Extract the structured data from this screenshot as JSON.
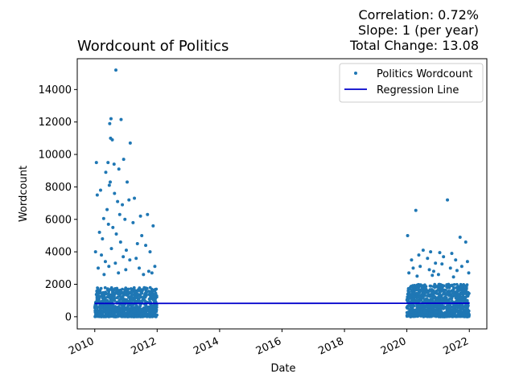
{
  "chart_data": {
    "type": "scatter",
    "title": "Wordcount of Politics",
    "stats": [
      "Correlation: 0.72%",
      "Slope: 1 (per year)",
      "Total Change: 13.08"
    ],
    "xlabel": "Date",
    "ylabel": "Wordcount",
    "x_ticks": [
      "2010",
      "2012",
      "2014",
      "2016",
      "2018",
      "2020",
      "2022"
    ],
    "y_ticks": [
      "0",
      "2000",
      "4000",
      "6000",
      "8000",
      "10000",
      "12000",
      "14000"
    ],
    "xlim": [
      "2009-06-10",
      "2022-07-25"
    ],
    "ylim": [
      -750,
      15900
    ],
    "grid": false,
    "legend_position": "upper right",
    "series": [
      {
        "name": "Politics Wordcount",
        "kind": "points",
        "color": "#1f77b4",
        "dense_bands": [
          {
            "x_range": [
              "2010-01-01",
              "2011-12-31"
            ],
            "y_range": [
              0,
              1800
            ]
          },
          {
            "x_range": [
              "2020-01-01",
              "2021-12-31"
            ],
            "y_range": [
              0,
              2000
            ]
          }
        ],
        "points": [
          [
            "2010-09-05",
            15200
          ],
          [
            "2010-07-10",
            12200
          ],
          [
            "2010-06-25",
            11900
          ],
          [
            "2010-11-05",
            12150
          ],
          [
            "2010-07-05",
            11000
          ],
          [
            "2010-07-25",
            10900
          ],
          [
            "2011-02-20",
            10700
          ],
          [
            "2010-01-20",
            9500
          ],
          [
            "2010-06-05",
            9500
          ],
          [
            "2010-08-15",
            9400
          ],
          [
            "2010-10-10",
            9100
          ],
          [
            "2010-12-05",
            9700
          ],
          [
            "2010-05-10",
            8900
          ],
          [
            "2010-07-01",
            8300
          ],
          [
            "2010-06-20",
            8100
          ],
          [
            "2011-01-15",
            8300
          ],
          [
            "2010-03-10",
            7800
          ],
          [
            "2010-08-20",
            7600
          ],
          [
            "2011-04-10",
            7300
          ],
          [
            "2010-01-30",
            7500
          ],
          [
            "2010-09-25",
            7100
          ],
          [
            "2010-11-20",
            6900
          ],
          [
            "2011-02-05",
            7200
          ],
          [
            "2010-05-25",
            6600
          ],
          [
            "2010-10-20",
            6300
          ],
          [
            "2011-06-20",
            6200
          ],
          [
            "2011-09-10",
            6300
          ],
          [
            "2010-04-15",
            6050
          ],
          [
            "2010-12-20",
            6000
          ],
          [
            "2010-06-10",
            5700
          ],
          [
            "2010-08-01",
            5500
          ],
          [
            "2011-03-25",
            5800
          ],
          [
            "2011-11-15",
            5600
          ],
          [
            "2010-02-25",
            5200
          ],
          [
            "2010-09-10",
            5100
          ],
          [
            "2011-07-05",
            5000
          ],
          [
            "2010-04-01",
            4800
          ],
          [
            "2010-10-30",
            4600
          ],
          [
            "2011-05-15",
            4500
          ],
          [
            "2011-08-20",
            4400
          ],
          [
            "2010-01-10",
            4000
          ],
          [
            "2010-07-15",
            4200
          ],
          [
            "2011-01-05",
            4100
          ],
          [
            "2011-10-10",
            4000
          ],
          [
            "2010-03-20",
            3800
          ],
          [
            "2010-11-30",
            3700
          ],
          [
            "2011-04-30",
            3600
          ],
          [
            "2011-12-05",
            3100
          ],
          [
            "2010-05-05",
            3400
          ],
          [
            "2010-08-30",
            3300
          ],
          [
            "2011-02-15",
            3500
          ],
          [
            "2011-06-05",
            3000
          ],
          [
            "2010-02-10",
            3000
          ],
          [
            "2010-12-30",
            2900
          ],
          [
            "2011-09-25",
            2800
          ],
          [
            "2010-06-15",
            3100
          ],
          [
            "2010-10-05",
            2700
          ],
          [
            "2011-07-25",
            2600
          ],
          [
            "2011-11-01",
            2700
          ],
          [
            "2010-04-20",
            2600
          ],
          [
            "2020-01-10",
            5000
          ],
          [
            "2020-04-15",
            6550
          ],
          [
            "2021-04-20",
            7200
          ],
          [
            "2021-09-15",
            4900
          ],
          [
            "2021-11-20",
            4600
          ],
          [
            "2020-07-10",
            4100
          ],
          [
            "2020-10-05",
            4000
          ],
          [
            "2021-01-20",
            3950
          ],
          [
            "2021-06-10",
            3900
          ],
          [
            "2020-05-20",
            3800
          ],
          [
            "2021-03-05",
            3700
          ],
          [
            "2020-02-25",
            3500
          ],
          [
            "2020-08-30",
            3600
          ],
          [
            "2021-07-25",
            3500
          ],
          [
            "2021-12-10",
            3400
          ],
          [
            "2020-12-01",
            3300
          ],
          [
            "2021-02-15",
            3250
          ],
          [
            "2020-06-05",
            3100
          ],
          [
            "2020-03-15",
            3000
          ],
          [
            "2021-05-25",
            3000
          ],
          [
            "2021-10-05",
            3100
          ],
          [
            "2020-09-20",
            2900
          ],
          [
            "2020-11-10",
            2800
          ],
          [
            "2021-08-10",
            2850
          ],
          [
            "2020-01-25",
            2700
          ],
          [
            "2021-01-05",
            2600
          ],
          [
            "2021-12-25",
            2700
          ],
          [
            "2020-04-30",
            2500
          ],
          [
            "2020-10-25",
            2550
          ],
          [
            "2021-06-30",
            2450
          ]
        ]
      },
      {
        "name": "Regression Line",
        "kind": "line",
        "color": "#0000cc",
        "points": [
          [
            "2010-01-01",
            820
          ],
          [
            "2022-01-01",
            833
          ]
        ]
      }
    ]
  }
}
